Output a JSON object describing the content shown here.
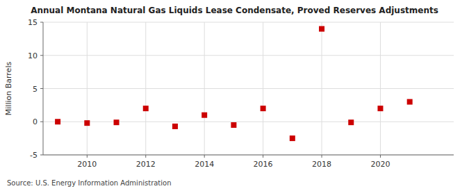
{
  "chart_data": {
    "type": "scatter",
    "title": "Annual Montana Natural Gas Liquids Lease Condensate, Proved Reserves Adjustments",
    "ylabel": "Million Barrels",
    "annotations": [
      "Source: U.S. Energy Information Administration"
    ],
    "x": [
      2009,
      2010,
      2011,
      2012,
      2013,
      2014,
      2015,
      2016,
      2017,
      2018,
      2019,
      2020,
      2021
    ],
    "values": [
      0.0,
      -0.2,
      -0.1,
      2.0,
      -0.7,
      1.0,
      -0.5,
      2.0,
      -2.5,
      14.0,
      -0.1,
      2.0,
      3.0
    ],
    "color": "#cc0000",
    "marker": "square",
    "xlim": [
      2008.5,
      2022.5
    ],
    "xticks": [
      2010,
      2012,
      2014,
      2016,
      2018,
      2020
    ],
    "ylim": [
      -5,
      15
    ],
    "yticks": [
      -5,
      0,
      5,
      10,
      15
    ],
    "grid": true
  }
}
